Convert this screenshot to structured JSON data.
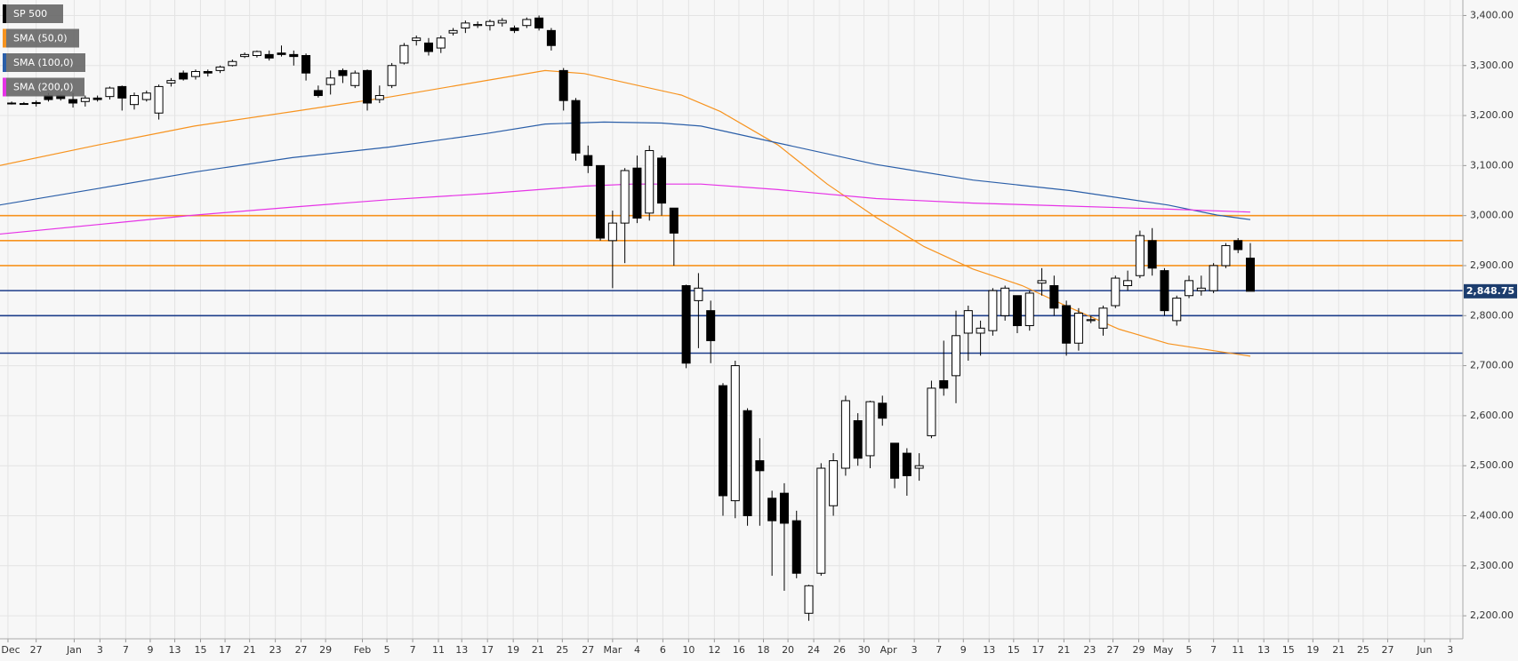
{
  "chart_data": {
    "type": "candlestick",
    "x": [
      0,
      1,
      2,
      3,
      4,
      5,
      6,
      7,
      8,
      9,
      10,
      11,
      12,
      13,
      14,
      15,
      16,
      17,
      18,
      19,
      20,
      21,
      22,
      23,
      24,
      25,
      26,
      27,
      28,
      29,
      30,
      31,
      32,
      33,
      34,
      35,
      36,
      37,
      38,
      39,
      40,
      41,
      42,
      43,
      44,
      45,
      46,
      47,
      48,
      49,
      50,
      51,
      52,
      53,
      54,
      55,
      56,
      57,
      58,
      59,
      60,
      61,
      62,
      63,
      64,
      65,
      66,
      67,
      68,
      69,
      70,
      71,
      72,
      73,
      74,
      75,
      76,
      77,
      78,
      79,
      80,
      81,
      82,
      83,
      84,
      85,
      86,
      87,
      88,
      89,
      90,
      91,
      92,
      93,
      94,
      95,
      96,
      97,
      98,
      99,
      100,
      101
    ],
    "series": [
      {
        "name": "SP 500",
        "color": "#000000",
        "open": [
          3225,
          3224,
          3226,
          3240,
          3240,
          3232,
          3228,
          3235,
          3238,
          3258,
          3222,
          3232,
          3205,
          3265,
          3285,
          3278,
          3288,
          3290,
          3300,
          3318,
          3320,
          3322,
          3325,
          3322,
          3320,
          3250,
          3262,
          3290,
          3260,
          3290,
          3232,
          3260,
          3305,
          3350,
          3345,
          3335,
          3365,
          3375,
          3380,
          3380,
          3385,
          3375,
          3380,
          3395,
          3370,
          3290,
          3230,
          3120,
          3100,
          2950,
          2985,
          3095,
          3005,
          3115,
          3015,
          2860,
          2830,
          2810,
          2660,
          2430,
          2610,
          2510,
          2435,
          2445,
          2390,
          2205,
          2285,
          2420,
          2495,
          2590,
          2520,
          2625,
          2545,
          2525,
          2495,
          2560,
          2670,
          2680,
          2765,
          2765,
          2770,
          2800,
          2840,
          2780,
          2865,
          2860,
          2820,
          2745,
          2790,
          2775,
          2820,
          2860,
          2880,
          2950,
          2890,
          2790,
          2840,
          2850,
          2850,
          2900,
          2950,
          2915
        ],
        "high": [
          3228,
          3227,
          3230,
          3245,
          3242,
          3245,
          3240,
          3240,
          3258,
          3260,
          3246,
          3250,
          3262,
          3275,
          3290,
          3292,
          3292,
          3300,
          3312,
          3326,
          3330,
          3330,
          3340,
          3330,
          3324,
          3260,
          3290,
          3294,
          3290,
          3292,
          3260,
          3305,
          3345,
          3360,
          3355,
          3360,
          3375,
          3390,
          3388,
          3392,
          3395,
          3380,
          3396,
          3400,
          3375,
          3295,
          3235,
          3140,
          3100,
          3010,
          3095,
          3120,
          3140,
          3120,
          3015,
          2862,
          2885,
          2830,
          2665,
          2710,
          2615,
          2555,
          2450,
          2465,
          2410,
          2262,
          2505,
          2525,
          2640,
          2605,
          2630,
          2640,
          2545,
          2535,
          2525,
          2670,
          2750,
          2810,
          2820,
          2790,
          2855,
          2860,
          2840,
          2850,
          2895,
          2880,
          2830,
          2815,
          2800,
          2820,
          2880,
          2890,
          2970,
          2975,
          2895,
          2840,
          2880,
          2880,
          2905,
          2945,
          2955,
          2945
        ],
        "low": [
          3222,
          3222,
          3218,
          3228,
          3230,
          3216,
          3218,
          3228,
          3232,
          3210,
          3212,
          3228,
          3192,
          3258,
          3270,
          3272,
          3278,
          3285,
          3298,
          3315,
          3316,
          3310,
          3318,
          3300,
          3270,
          3236,
          3242,
          3265,
          3255,
          3210,
          3225,
          3255,
          3302,
          3340,
          3320,
          3325,
          3360,
          3365,
          3375,
          3370,
          3378,
          3365,
          3375,
          3370,
          3330,
          3210,
          3110,
          3085,
          2950,
          2855,
          2905,
          2985,
          2990,
          3000,
          2900,
          2695,
          2735,
          2705,
          2400,
          2395,
          2380,
          2380,
          2280,
          2250,
          2275,
          2190,
          2280,
          2400,
          2480,
          2500,
          2495,
          2580,
          2455,
          2440,
          2470,
          2555,
          2640,
          2625,
          2710,
          2720,
          2760,
          2790,
          2765,
          2770,
          2840,
          2800,
          2720,
          2730,
          2785,
          2760,
          2815,
          2850,
          2875,
          2880,
          2800,
          2780,
          2835,
          2840,
          2845,
          2895,
          2925,
          2848.75
        ],
        "close": [
          3225,
          3224,
          3224,
          3232,
          3234,
          3225,
          3235,
          3232,
          3255,
          3235,
          3240,
          3245,
          3258,
          3270,
          3273,
          3288,
          3285,
          3297,
          3308,
          3322,
          3328,
          3315,
          3322,
          3318,
          3285,
          3240,
          3275,
          3280,
          3285,
          3225,
          3240,
          3300,
          3340,
          3355,
          3328,
          3355,
          3370,
          3385,
          3382,
          3388,
          3390,
          3370,
          3392,
          3375,
          3340,
          3230,
          3125,
          3100,
          2955,
          2985,
          3090,
          2995,
          3130,
          3025,
          2965,
          2705,
          2855,
          2750,
          2440,
          2700,
          2400,
          2490,
          2390,
          2385,
          2285,
          2260,
          2495,
          2510,
          2630,
          2515,
          2628,
          2595,
          2475,
          2480,
          2500,
          2655,
          2655,
          2760,
          2810,
          2775,
          2850,
          2855,
          2780,
          2845,
          2870,
          2815,
          2745,
          2805,
          2792,
          2815,
          2875,
          2870,
          2960,
          2895,
          2810,
          2835,
          2870,
          2855,
          2900,
          2940,
          2932,
          2848.75
        ]
      },
      {
        "name": "SMA (50,0)",
        "color": "#f7931e",
        "x": [
          -1.0,
          7.0,
          14.9,
          22.9,
          30.8,
          38.7,
          43.5,
          46.7,
          54.6,
          57.8,
          62.5,
          66.5,
          70.5,
          74.4,
          78.4,
          82.4,
          86.3,
          90.3,
          94.3,
          98.3,
          101.0
        ],
        "values": [
          3100,
          3141,
          3179,
          3208,
          3237,
          3270,
          3290,
          3284,
          3241,
          3208,
          3141,
          3063,
          2996,
          2938,
          2893,
          2860,
          2816,
          2773,
          2744,
          2729,
          2719
        ]
      },
      {
        "name": "SMA (100,0)",
        "color": "#2a5ea8",
        "x": [
          -1.0,
          7.0,
          14.9,
          22.9,
          30.8,
          38.7,
          43.5,
          48.3,
          53.0,
          56.2,
          62.5,
          70.5,
          78.4,
          86.3,
          94.3,
          98.3,
          101.0
        ],
        "values": [
          3021,
          3054,
          3087,
          3116,
          3137,
          3164,
          3183,
          3187,
          3185,
          3179,
          3145,
          3102,
          3071,
          3050,
          3021,
          3001,
          2992
        ]
      },
      {
        "name": "SMA (200,0)",
        "color": "#e633e6",
        "x": [
          -1.0,
          7.0,
          14.9,
          22.9,
          30.8,
          38.7,
          46.7,
          50.6,
          56.2,
          62.5,
          70.5,
          78.4,
          86.3,
          94.3,
          101.0
        ],
        "values": [
          2963,
          2982,
          3001,
          3017,
          3032,
          3044,
          3059,
          3063,
          3063,
          3052,
          3034,
          3025,
          3019,
          3013,
          3007
        ]
      }
    ],
    "levels": [
      {
        "value": 3000,
        "color": "#f7931e"
      },
      {
        "value": 2950,
        "color": "#f7931e"
      },
      {
        "value": 2900,
        "color": "#f7931e"
      },
      {
        "value": 2850,
        "color": "#1c3d8a"
      },
      {
        "value": 2800,
        "color": "#1c3d8a"
      },
      {
        "value": 2725,
        "color": "#1c3d8a"
      }
    ],
    "last_price": {
      "value": 2848.75,
      "label": "2,848.75"
    },
    "xlim": [
      -0.95,
      118.33
    ],
    "ylim": [
      2154,
      3431
    ],
    "yticks": [
      {
        "value": 2200,
        "label": "2,200.00"
      },
      {
        "value": 2300,
        "label": "2,300.00"
      },
      {
        "value": 2400,
        "label": "2,400.00"
      },
      {
        "value": 2500,
        "label": "2,500.00"
      },
      {
        "value": 2600,
        "label": "2,600.00"
      },
      {
        "value": 2700,
        "label": "2,700.00"
      },
      {
        "value": 2800,
        "label": "2,800.00"
      },
      {
        "value": 2900,
        "label": "2,900.00"
      },
      {
        "value": 3000,
        "label": "3,000.00"
      },
      {
        "value": 3100,
        "label": "3,100.00"
      },
      {
        "value": 3200,
        "label": "3,200.00"
      },
      {
        "value": 3300,
        "label": "3,300.00"
      },
      {
        "value": 3400,
        "label": "3,400.00"
      }
    ],
    "xticks": [
      {
        "value": -0.3,
        "label": "Dec"
      },
      {
        "value": 2.0,
        "label": "27"
      },
      {
        "value": 5.1,
        "label": "Jan"
      },
      {
        "value": 7.2,
        "label": "3"
      },
      {
        "value": 9.3,
        "label": "7"
      },
      {
        "value": 11.3,
        "label": "9"
      },
      {
        "value": 13.3,
        "label": "13"
      },
      {
        "value": 15.4,
        "label": "15"
      },
      {
        "value": 17.4,
        "label": "17"
      },
      {
        "value": 19.4,
        "label": "21"
      },
      {
        "value": 21.5,
        "label": "23"
      },
      {
        "value": 23.6,
        "label": "27"
      },
      {
        "value": 25.6,
        "label": "29"
      },
      {
        "value": 28.6,
        "label": "Feb"
      },
      {
        "value": 30.6,
        "label": "5"
      },
      {
        "value": 32.7,
        "label": "7"
      },
      {
        "value": 34.8,
        "label": "11"
      },
      {
        "value": 36.7,
        "label": "13"
      },
      {
        "value": 38.8,
        "label": "17"
      },
      {
        "value": 40.9,
        "label": "19"
      },
      {
        "value": 42.9,
        "label": "21"
      },
      {
        "value": 44.9,
        "label": "25"
      },
      {
        "value": 47.0,
        "label": "27"
      },
      {
        "value": 49.0,
        "label": "Mar"
      },
      {
        "value": 51.0,
        "label": "4"
      },
      {
        "value": 53.1,
        "label": "6"
      },
      {
        "value": 55.2,
        "label": "10"
      },
      {
        "value": 57.3,
        "label": "12"
      },
      {
        "value": 59.3,
        "label": "16"
      },
      {
        "value": 61.3,
        "label": "18"
      },
      {
        "value": 63.3,
        "label": "20"
      },
      {
        "value": 65.4,
        "label": "24"
      },
      {
        "value": 67.5,
        "label": "26"
      },
      {
        "value": 69.5,
        "label": "30"
      },
      {
        "value": 71.5,
        "label": "Apr"
      },
      {
        "value": 73.6,
        "label": "3"
      },
      {
        "value": 75.6,
        "label": "7"
      },
      {
        "value": 77.6,
        "label": "9"
      },
      {
        "value": 79.7,
        "label": "13"
      },
      {
        "value": 81.7,
        "label": "15"
      },
      {
        "value": 83.7,
        "label": "17"
      },
      {
        "value": 85.8,
        "label": "21"
      },
      {
        "value": 87.9,
        "label": "23"
      },
      {
        "value": 89.8,
        "label": "27"
      },
      {
        "value": 91.9,
        "label": "29"
      },
      {
        "value": 93.9,
        "label": "May"
      },
      {
        "value": 96.0,
        "label": "5"
      },
      {
        "value": 98.0,
        "label": "7"
      },
      {
        "value": 100.0,
        "label": "11"
      },
      {
        "value": 102.1,
        "label": "13"
      },
      {
        "value": 104.1,
        "label": "15"
      },
      {
        "value": 106.1,
        "label": "19"
      },
      {
        "value": 108.2,
        "label": "21"
      },
      {
        "value": 110.2,
        "label": "25"
      },
      {
        "value": 112.2,
        "label": "27"
      },
      {
        "value": 115.2,
        "label": "Jun"
      },
      {
        "value": 117.3,
        "label": "3"
      }
    ],
    "grid": true
  }
}
